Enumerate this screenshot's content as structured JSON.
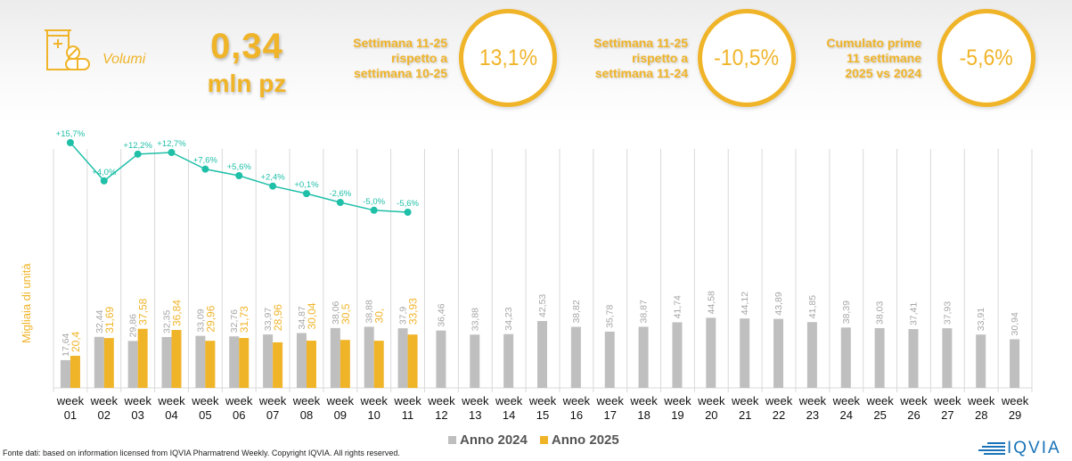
{
  "header": {
    "icon": "pill-bottle-icon",
    "section_label": "Volumi",
    "big_value": "0,34",
    "big_unit": "mln pz",
    "kpis": [
      {
        "label_lines": [
          "Settimana 11-25",
          "rispetto a",
          "settimana 10-25"
        ],
        "value": "13,1%"
      },
      {
        "label_lines": [
          "Settimana 11-25",
          "rispetto a",
          "settimana 11-24"
        ],
        "value": "-10,5%"
      },
      {
        "label_lines": [
          "Cumulato prime",
          "11 settimane",
          "2025 vs 2024"
        ],
        "value": "-5,6%"
      }
    ]
  },
  "colors": {
    "accent": "#f0b429",
    "series_2024": "#bfbfbf",
    "series_2025": "#f0b429",
    "line": "#1fbfa8",
    "grid": "#d9d9d9"
  },
  "chart_data": {
    "type": "bar",
    "title": "",
    "xlabel": "",
    "ylabel": "Migliaia di unità",
    "ylim": [
      0,
      152
    ],
    "grid": true,
    "legend_position": "bottom",
    "categories": [
      "week 01",
      "week 02",
      "week 03",
      "week 04",
      "week 05",
      "week 06",
      "week 07",
      "week 08",
      "week 09",
      "week 10",
      "week 11",
      "week 12",
      "week 13",
      "week 14",
      "week 15",
      "week 16",
      "week 17",
      "week 18",
      "week 19",
      "week 20",
      "week 21",
      "week 22",
      "week 23",
      "week 24",
      "week 25",
      "week 26",
      "week 27",
      "week 28",
      "week 29"
    ],
    "series": [
      {
        "name": "Anno 2024",
        "values": [
          17.64,
          32.44,
          29.86,
          32.35,
          33.09,
          32.76,
          33.97,
          34.87,
          38.06,
          38.88,
          37.9,
          36.46,
          33.88,
          34.23,
          42.53,
          38.82,
          35.78,
          38.87,
          41.74,
          44.58,
          44.12,
          43.89,
          41.85,
          38.39,
          38.03,
          37.41,
          37.93,
          33.91,
          30.94
        ],
        "labels": [
          "17,64",
          "32,44",
          "29,86",
          "32,35",
          "33,09",
          "32,76",
          "33,97",
          "34,87",
          "38,06",
          "38,88",
          "37,9",
          "36,46",
          "33,88",
          "34,23",
          "42,53",
          "38,82",
          "35,78",
          "38,87",
          "41,74",
          "44,58",
          "44,12",
          "43,89",
          "41,85",
          "38,39",
          "38,03",
          "37,41",
          "37,93",
          "33,91",
          "30,94"
        ]
      },
      {
        "name": "Anno 2025",
        "values": [
          20.4,
          31.69,
          37.58,
          36.84,
          29.96,
          31.73,
          28.96,
          30.04,
          30.5,
          30.0,
          33.93
        ],
        "labels": [
          "20,4",
          "31,69",
          "37,58",
          "36,84",
          "29,96",
          "31,73",
          "28,96",
          "30,04",
          "30,5",
          "30,",
          "33,93"
        ]
      }
    ],
    "cumulative_change": {
      "name": "Cumulato 2025 vs 2024",
      "type": "line",
      "values": [
        15.7,
        4.0,
        12.2,
        12.7,
        7.6,
        5.6,
        2.4,
        0.1,
        -2.6,
        -5.0,
        -5.6
      ],
      "labels": [
        "+15,7%",
        "+4,0%",
        "+12,2%",
        "+12,7%",
        "+7,6%",
        "+5,6%",
        "+2,4%",
        "+0,1%",
        "-2,6%",
        "-5,0%",
        "-5,6%"
      ],
      "ylim": [
        -30,
        20
      ]
    }
  },
  "legend": {
    "items": [
      "Anno 2024",
      "Anno 2025"
    ]
  },
  "footer": {
    "source": "Fonte dati: based on information licensed from IQVIA Pharmatrend Weekly. Copyright IQVIA. All rights reserved.",
    "logo_text": "IQVIA",
    "logo_icon": "iqvia-stripes-icon"
  }
}
